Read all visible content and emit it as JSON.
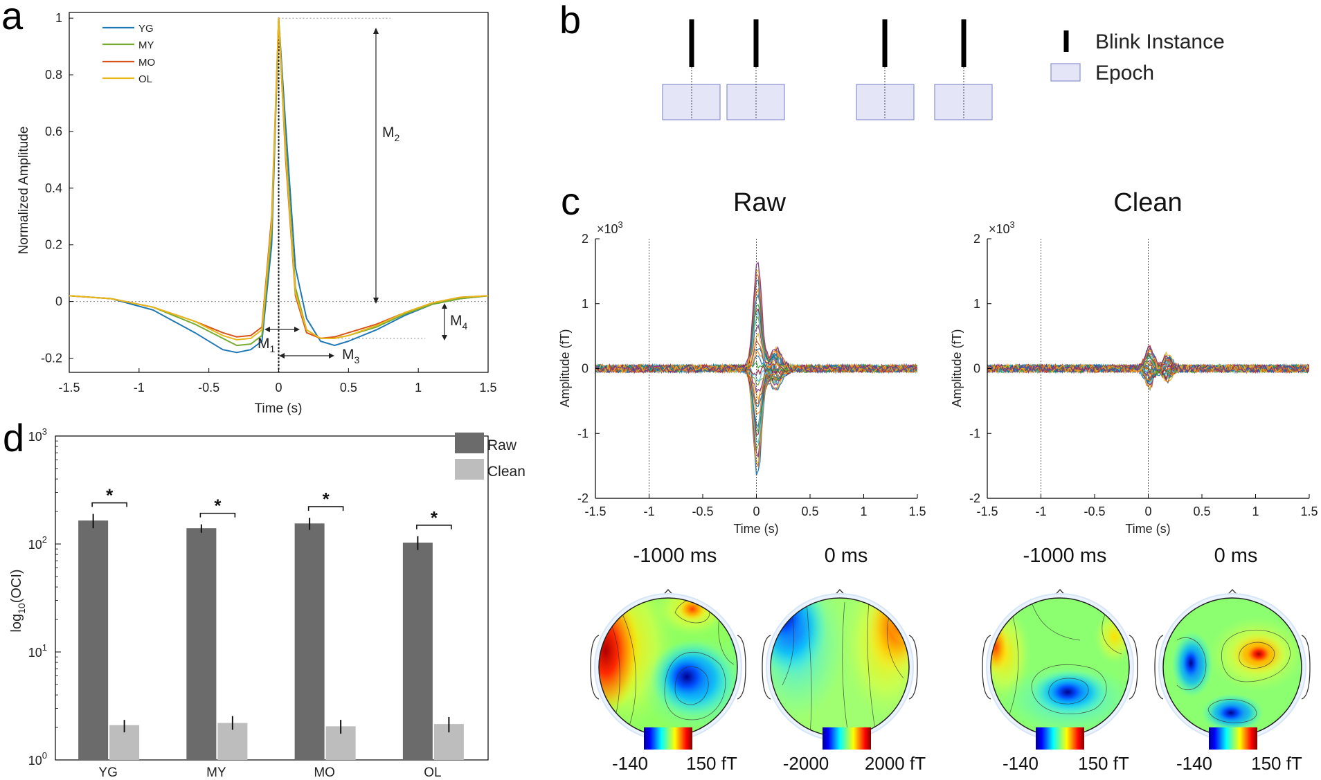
{
  "panels": {
    "a": "a",
    "b": "b",
    "c": "c",
    "d": "d"
  },
  "colors": {
    "YG": "#1f77b4",
    "MY": "#77ac30",
    "MO": "#d95319",
    "OL": "#e8b71a",
    "raw_bar": "#6b6b6b",
    "clean_bar": "#bdbdbd",
    "epoch": "#e4e6f7",
    "epoch_border": "#8a8fd0"
  },
  "panel_a": {
    "ylabel": "Normalized Amplitude",
    "xlabel": "Time (s)",
    "xticks": [
      "-1.5",
      "-1",
      "-0.5",
      "0",
      "0.5",
      "1",
      "1.5"
    ],
    "yticks": [
      "1",
      "0.8",
      "0.6",
      "0.4",
      "0.2",
      "0",
      "-0.2"
    ],
    "legend": [
      "YG",
      "MY",
      "MO",
      "OL"
    ],
    "measures": {
      "m1": "M",
      "m1_sub": "1",
      "m2": "M",
      "m2_sub": "2",
      "m3": "M",
      "m3_sub": "3",
      "m4": "M",
      "m4_sub": "4"
    }
  },
  "panel_b": {
    "legend": {
      "blink": "Blink Instance",
      "epoch": "Epoch"
    }
  },
  "panel_c": {
    "raw_title": "Raw",
    "clean_title": "Clean",
    "ylabel": "Amplitude (fT)",
    "xlabel": "Time (s)",
    "multiplier_base": "×10",
    "multiplier_exp": "3",
    "xticks": [
      "-1.5",
      "-1",
      "-0.5",
      "0",
      "0.5",
      "1",
      "1.5"
    ],
    "yticks": [
      "2",
      "1",
      "0",
      "-1",
      "-2"
    ],
    "topos": [
      {
        "label": "-1000 ms",
        "cmin": "-140",
        "cmax": "150 fT"
      },
      {
        "label": "0 ms",
        "cmin": "-2000",
        "cmax": "2000 fT"
      },
      {
        "label": "-1000 ms",
        "cmin": "-140",
        "cmax": "150 fT"
      },
      {
        "label": "0 ms",
        "cmin": "-140",
        "cmax": "150 fT"
      }
    ]
  },
  "panel_d": {
    "ylabel_pre": "log",
    "ylabel_sub": "10",
    "ylabel_post": "(OCI)",
    "yticks": [
      {
        "base": "10",
        "exp": "3"
      },
      {
        "base": "10",
        "exp": "2"
      },
      {
        "base": "10",
        "exp": "1"
      },
      {
        "base": "10",
        "exp": "0"
      }
    ],
    "legend": [
      "Raw",
      "Clean"
    ],
    "significance": "*"
  },
  "chart_data": [
    {
      "type": "line",
      "title": "a",
      "xlabel": "Time (s)",
      "ylabel": "Normalized Amplitude",
      "xlim": [
        -1.5,
        1.5
      ],
      "ylim": [
        -0.25,
        1.02
      ],
      "series": [
        {
          "name": "YG",
          "x": [
            -1.5,
            -1.2,
            -0.9,
            -0.6,
            -0.4,
            -0.3,
            -0.2,
            -0.12,
            -0.05,
            0,
            0.05,
            0.12,
            0.2,
            0.3,
            0.4,
            0.5,
            0.7,
            0.9,
            1.1,
            1.3,
            1.5
          ],
          "y": [
            0.02,
            0.01,
            -0.03,
            -0.11,
            -0.17,
            -0.18,
            -0.17,
            -0.14,
            0.2,
            1.0,
            0.62,
            0.12,
            -0.06,
            -0.14,
            -0.155,
            -0.14,
            -0.1,
            -0.05,
            -0.01,
            0.01,
            0.02
          ]
        },
        {
          "name": "MY",
          "x": [
            -1.5,
            -1.2,
            -0.9,
            -0.6,
            -0.4,
            -0.3,
            -0.2,
            -0.12,
            -0.05,
            0,
            0.05,
            0.12,
            0.2,
            0.3,
            0.4,
            0.5,
            0.7,
            0.9,
            1.1,
            1.3,
            1.5
          ],
          "y": [
            0.02,
            0.01,
            -0.02,
            -0.08,
            -0.13,
            -0.155,
            -0.15,
            -0.12,
            0.25,
            1.0,
            0.55,
            0.05,
            -0.1,
            -0.13,
            -0.13,
            -0.12,
            -0.09,
            -0.045,
            -0.01,
            0.01,
            0.02
          ]
        },
        {
          "name": "MO",
          "x": [
            -1.5,
            -1.2,
            -0.9,
            -0.6,
            -0.4,
            -0.3,
            -0.2,
            -0.12,
            -0.05,
            0,
            0.05,
            0.12,
            0.2,
            0.3,
            0.4,
            0.5,
            0.7,
            0.9,
            1.1,
            1.3,
            1.5
          ],
          "y": [
            0.02,
            0.01,
            -0.02,
            -0.07,
            -0.11,
            -0.125,
            -0.12,
            -0.09,
            0.3,
            1.0,
            0.5,
            0.02,
            -0.11,
            -0.13,
            -0.125,
            -0.11,
            -0.08,
            -0.04,
            -0.005,
            0.015,
            0.02
          ]
        },
        {
          "name": "OL",
          "x": [
            -1.5,
            -1.2,
            -0.9,
            -0.6,
            -0.4,
            -0.3,
            -0.2,
            -0.12,
            -0.05,
            0,
            0.05,
            0.12,
            0.2,
            0.3,
            0.4,
            0.5,
            0.7,
            0.9,
            1.1,
            1.3,
            1.5
          ],
          "y": [
            0.02,
            0.01,
            -0.02,
            -0.07,
            -0.12,
            -0.135,
            -0.13,
            -0.1,
            0.28,
            1.0,
            0.52,
            0.03,
            -0.1,
            -0.13,
            -0.13,
            -0.12,
            -0.085,
            -0.04,
            -0.005,
            0.015,
            0.02
          ]
        }
      ]
    },
    {
      "type": "line",
      "title": "Raw",
      "xlabel": "Time (s)",
      "ylabel": "Amplitude (fT)",
      "xlim": [
        -1.5,
        1.5
      ],
      "ylim": [
        -2000,
        2000
      ],
      "peak_max": 1650,
      "peak_min": -1650,
      "baseline_noise": 60
    },
    {
      "type": "line",
      "title": "Clean",
      "xlabel": "Time (s)",
      "ylabel": "Amplitude (fT)",
      "xlim": [
        -1.5,
        1.5
      ],
      "ylim": [
        -2000,
        2000
      ],
      "peak_max": 350,
      "peak_min": -300,
      "baseline_noise": 60
    },
    {
      "type": "bar",
      "title": "d",
      "ylabel": "log10(OCI)",
      "scale": "log",
      "ylim": [
        1,
        1000
      ],
      "categories": [
        "YG",
        "MY",
        "MO",
        "OL"
      ],
      "series": [
        {
          "name": "Raw",
          "values": [
            165,
            140,
            155,
            103
          ],
          "errors": [
            [
              140,
              190
            ],
            [
              127,
              152
            ],
            [
              135,
              175
            ],
            [
              88,
              118
            ]
          ]
        },
        {
          "name": "Clean",
          "values": [
            2.1,
            2.2,
            2.05,
            2.15
          ],
          "errors": [
            [
              1.8,
              2.35
            ],
            [
              1.9,
              2.55
            ],
            [
              1.75,
              2.35
            ],
            [
              1.8,
              2.5
            ]
          ]
        }
      ],
      "significance": [
        "*",
        "*",
        "*",
        "*"
      ]
    }
  ]
}
